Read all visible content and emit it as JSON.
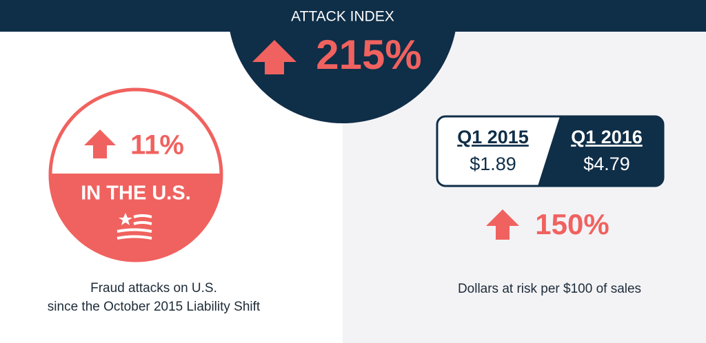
{
  "header": {
    "title": "ATTACK INDEX",
    "value": "215%"
  },
  "left": {
    "value": "11%",
    "label": "IN THE U.S.",
    "caption": [
      "Fraud attacks on U.S.",
      "since the October 2015 Liability Shift"
    ]
  },
  "right": {
    "periods": [
      {
        "label": "Q1 2015",
        "value": "$1.89"
      },
      {
        "label": "Q1 2016",
        "value": "$4.79"
      }
    ],
    "change": "150%",
    "caption": "Dollars at risk per $100 of sales"
  }
}
